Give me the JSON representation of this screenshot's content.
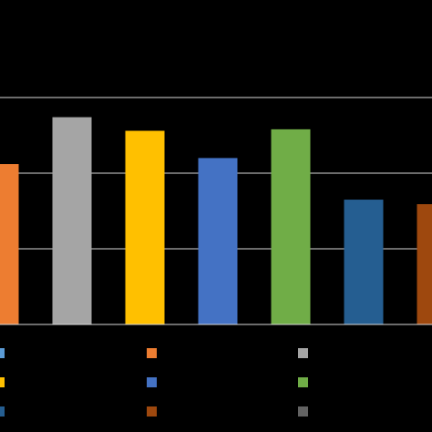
{
  "chart_data": {
    "type": "bar",
    "title": "",
    "xlabel": "",
    "ylabel": "",
    "ylim": [
      0,
      3
    ],
    "gridlines": [
      1,
      2,
      3
    ],
    "grid": true,
    "legend_position": "bottom",
    "bars": [
      {
        "value": 2.12,
        "color": "#ED7D31"
      },
      {
        "value": 2.74,
        "color": "#A5A5A5"
      },
      {
        "value": 2.56,
        "color": "#FFC000"
      },
      {
        "value": 2.2,
        "color": "#4472C4"
      },
      {
        "value": 2.58,
        "color": "#70AD47"
      },
      {
        "value": 1.65,
        "color": "#255E91"
      },
      {
        "value": 1.59,
        "color": "#9E480E"
      }
    ],
    "legend_swatches": [
      "#5B9BD5",
      "#ED7D31",
      "#A5A5A5",
      "#FFC000",
      "#4472C4",
      "#70AD47",
      "#255E91",
      "#9E480E",
      "#636363"
    ]
  }
}
